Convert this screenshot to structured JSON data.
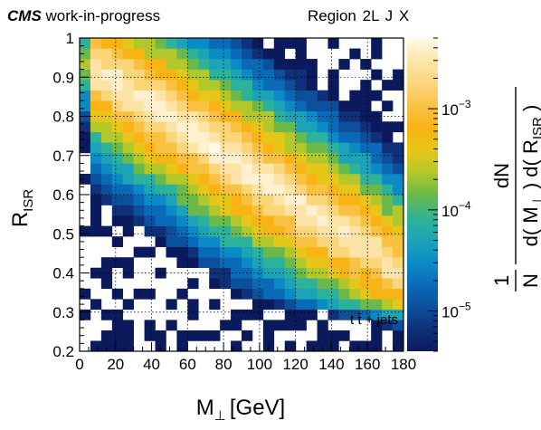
{
  "header": {
    "experiment": "CMS",
    "status": "work-in-progress",
    "region_label": "Region",
    "region_parts": [
      "2L",
      "J",
      "X"
    ]
  },
  "chart_data": {
    "type": "heatmap",
    "title": "",
    "xlabel": "M⊥ [GeV]",
    "xlabel_main": "M",
    "xlabel_sub": "⊥",
    "xlabel_unit": "[GeV]",
    "ylabel": "R_ISR",
    "ylabel_main": "R",
    "ylabel_sub": "ISR",
    "zlabel": "1/N dN/(d(M⊥) d(R_ISR))",
    "zlabel_parts": {
      "num_one": "1",
      "N": "N",
      "dN": "dN",
      "d1": "d( M",
      "d1_sub": "⊥",
      "d1_close": " ) d( R",
      "d2_sub": "ISR",
      "d2_close": " )"
    },
    "annotation": "t t̄ + jets",
    "xlim": [
      0,
      180
    ],
    "ylim": [
      0.2,
      1.0
    ],
    "zscale": "log",
    "zlim": [
      4e-06,
      0.005
    ],
    "x_ticks": [
      "0",
      "20",
      "40",
      "60",
      "80",
      "100",
      "120",
      "140",
      "160",
      "180"
    ],
    "x_tick_values": [
      0,
      20,
      40,
      60,
      80,
      100,
      120,
      140,
      160,
      180
    ],
    "y_ticks": [
      "0.2",
      "0.3",
      "0.4",
      "0.5",
      "0.6",
      "0.7",
      "0.8",
      "0.9",
      "1"
    ],
    "y_tick_values": [
      0.2,
      0.3,
      0.4,
      0.5,
      0.6,
      0.7,
      0.8,
      0.9,
      1.0
    ],
    "z_ticks": [
      {
        "base": "10",
        "exp": "−5",
        "value": 1e-05
      },
      {
        "base": "10",
        "exp": "−4",
        "value": 0.0001
      },
      {
        "base": "10",
        "exp": "−3",
        "value": 0.001
      }
    ],
    "grid": true,
    "bins": {
      "nx": 30,
      "ny": 30
    },
    "colormap": [
      "#0a1a5c",
      "#10307a",
      "#0c4f9a",
      "#0a6ab8",
      "#0a8bc6",
      "#1ba3b8",
      "#2cb29a",
      "#6ab94a",
      "#b2c82a",
      "#e6c617",
      "#f8b314",
      "#f9c142",
      "#fbd57a",
      "#fde3a6",
      "#fff1cf",
      "#fffbe8"
    ],
    "density_model": "bright diagonal ridge from low M⊥ / high R_ISR toward M⊥≈150 GeV / R_ISR≈0.45, peaking near M⊥≈50–90 GeV, R_ISR≈0.55–0.62; falls off sharply below R_ISR≈0.3 and toward the upper-right corner"
  }
}
